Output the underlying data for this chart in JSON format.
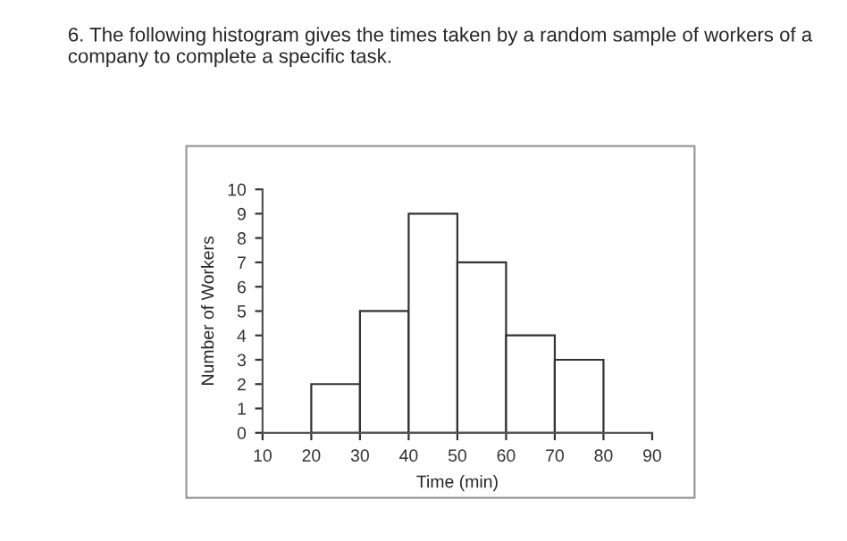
{
  "chart_data": {
    "type": "histogram",
    "title": "6. The following histogram gives the times taken by a random sample of workers of a company to complete a specific task.",
    "xlabel": "Time (min)",
    "ylabel": "Number of Workers",
    "bins": [
      20,
      30,
      40,
      50,
      60,
      70,
      80
    ],
    "values": [
      2,
      5,
      9,
      7,
      4,
      3
    ],
    "color": "#ffffff",
    "xlim": [
      10,
      90
    ],
    "xticks": [
      10,
      20,
      30,
      40,
      50,
      60,
      70,
      80,
      90
    ],
    "ylim": [
      0,
      10
    ],
    "yticks": [
      0,
      1,
      2,
      3,
      4,
      5,
      6,
      7,
      8,
      9,
      10
    ],
    "grid": false
  }
}
